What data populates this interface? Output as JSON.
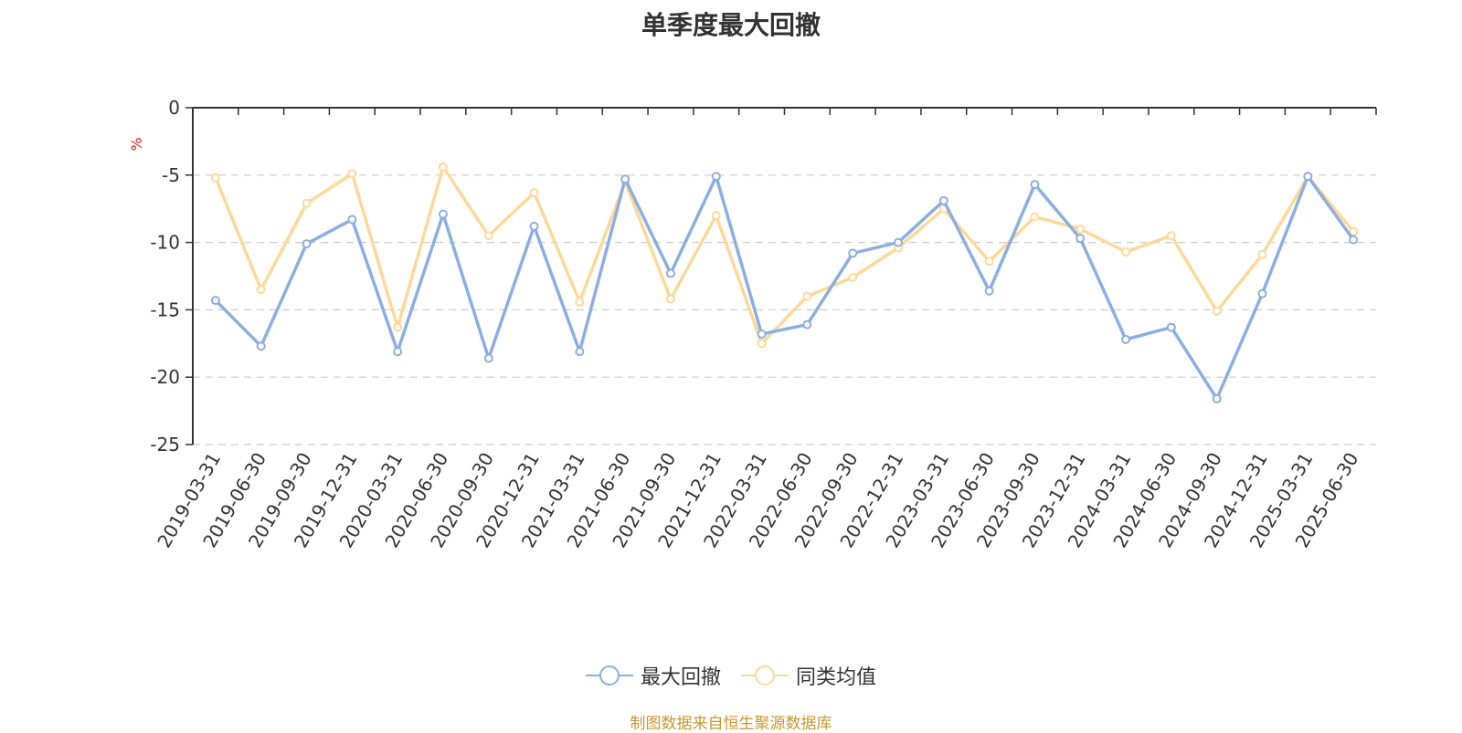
{
  "title": "单季度最大回撤",
  "source_note": "制图数据来自恒生聚源数据库",
  "colors": {
    "series_0": "#8caee0",
    "series_1": "#fcd999",
    "axis": "#333333",
    "grid": "#cccccc",
    "unit_label": "#e02020",
    "source_note": "#c8982e"
  },
  "chart_data": {
    "type": "line",
    "title": "单季度最大回撤",
    "ylabel": "%",
    "xlabel": "",
    "ylim": [
      -25,
      0
    ],
    "yticks": [
      0,
      -5,
      -10,
      -15,
      -20,
      -25
    ],
    "grid": "horizontal dashed",
    "legend_position": "bottom-center",
    "categories": [
      "2019-03-31",
      "2019-06-30",
      "2019-09-30",
      "2019-12-31",
      "2020-03-31",
      "2020-06-30",
      "2020-09-30",
      "2020-12-31",
      "2021-03-31",
      "2021-06-30",
      "2021-09-30",
      "2021-12-31",
      "2022-03-31",
      "2022-06-30",
      "2022-09-30",
      "2022-12-31",
      "2023-03-31",
      "2023-06-30",
      "2023-09-30",
      "2023-12-31",
      "2024-03-31",
      "2024-06-30",
      "2024-09-30",
      "2024-12-31",
      "2025-03-31",
      "2025-06-30"
    ],
    "series": [
      {
        "name": "最大回撤",
        "values": [
          -14.3,
          -17.7,
          -10.1,
          -8.3,
          -18.1,
          -7.9,
          -18.6,
          -8.8,
          -18.1,
          -5.3,
          -12.3,
          -5.1,
          -16.8,
          -16.1,
          -10.8,
          -10.0,
          -6.9,
          -13.6,
          -5.7,
          -9.7,
          -17.2,
          -16.3,
          -21.6,
          -13.8,
          -5.1,
          -9.8
        ]
      },
      {
        "name": "同类均值",
        "values": [
          -5.2,
          -13.5,
          -7.1,
          -4.9,
          -16.3,
          -4.4,
          -9.5,
          -6.3,
          -14.4,
          -5.5,
          -14.2,
          -8.0,
          -17.5,
          -14.0,
          -12.6,
          -10.4,
          -7.5,
          -11.4,
          -8.1,
          -9.0,
          -10.7,
          -9.5,
          -15.1,
          -10.9,
          -5.1,
          -9.2
        ]
      }
    ]
  }
}
